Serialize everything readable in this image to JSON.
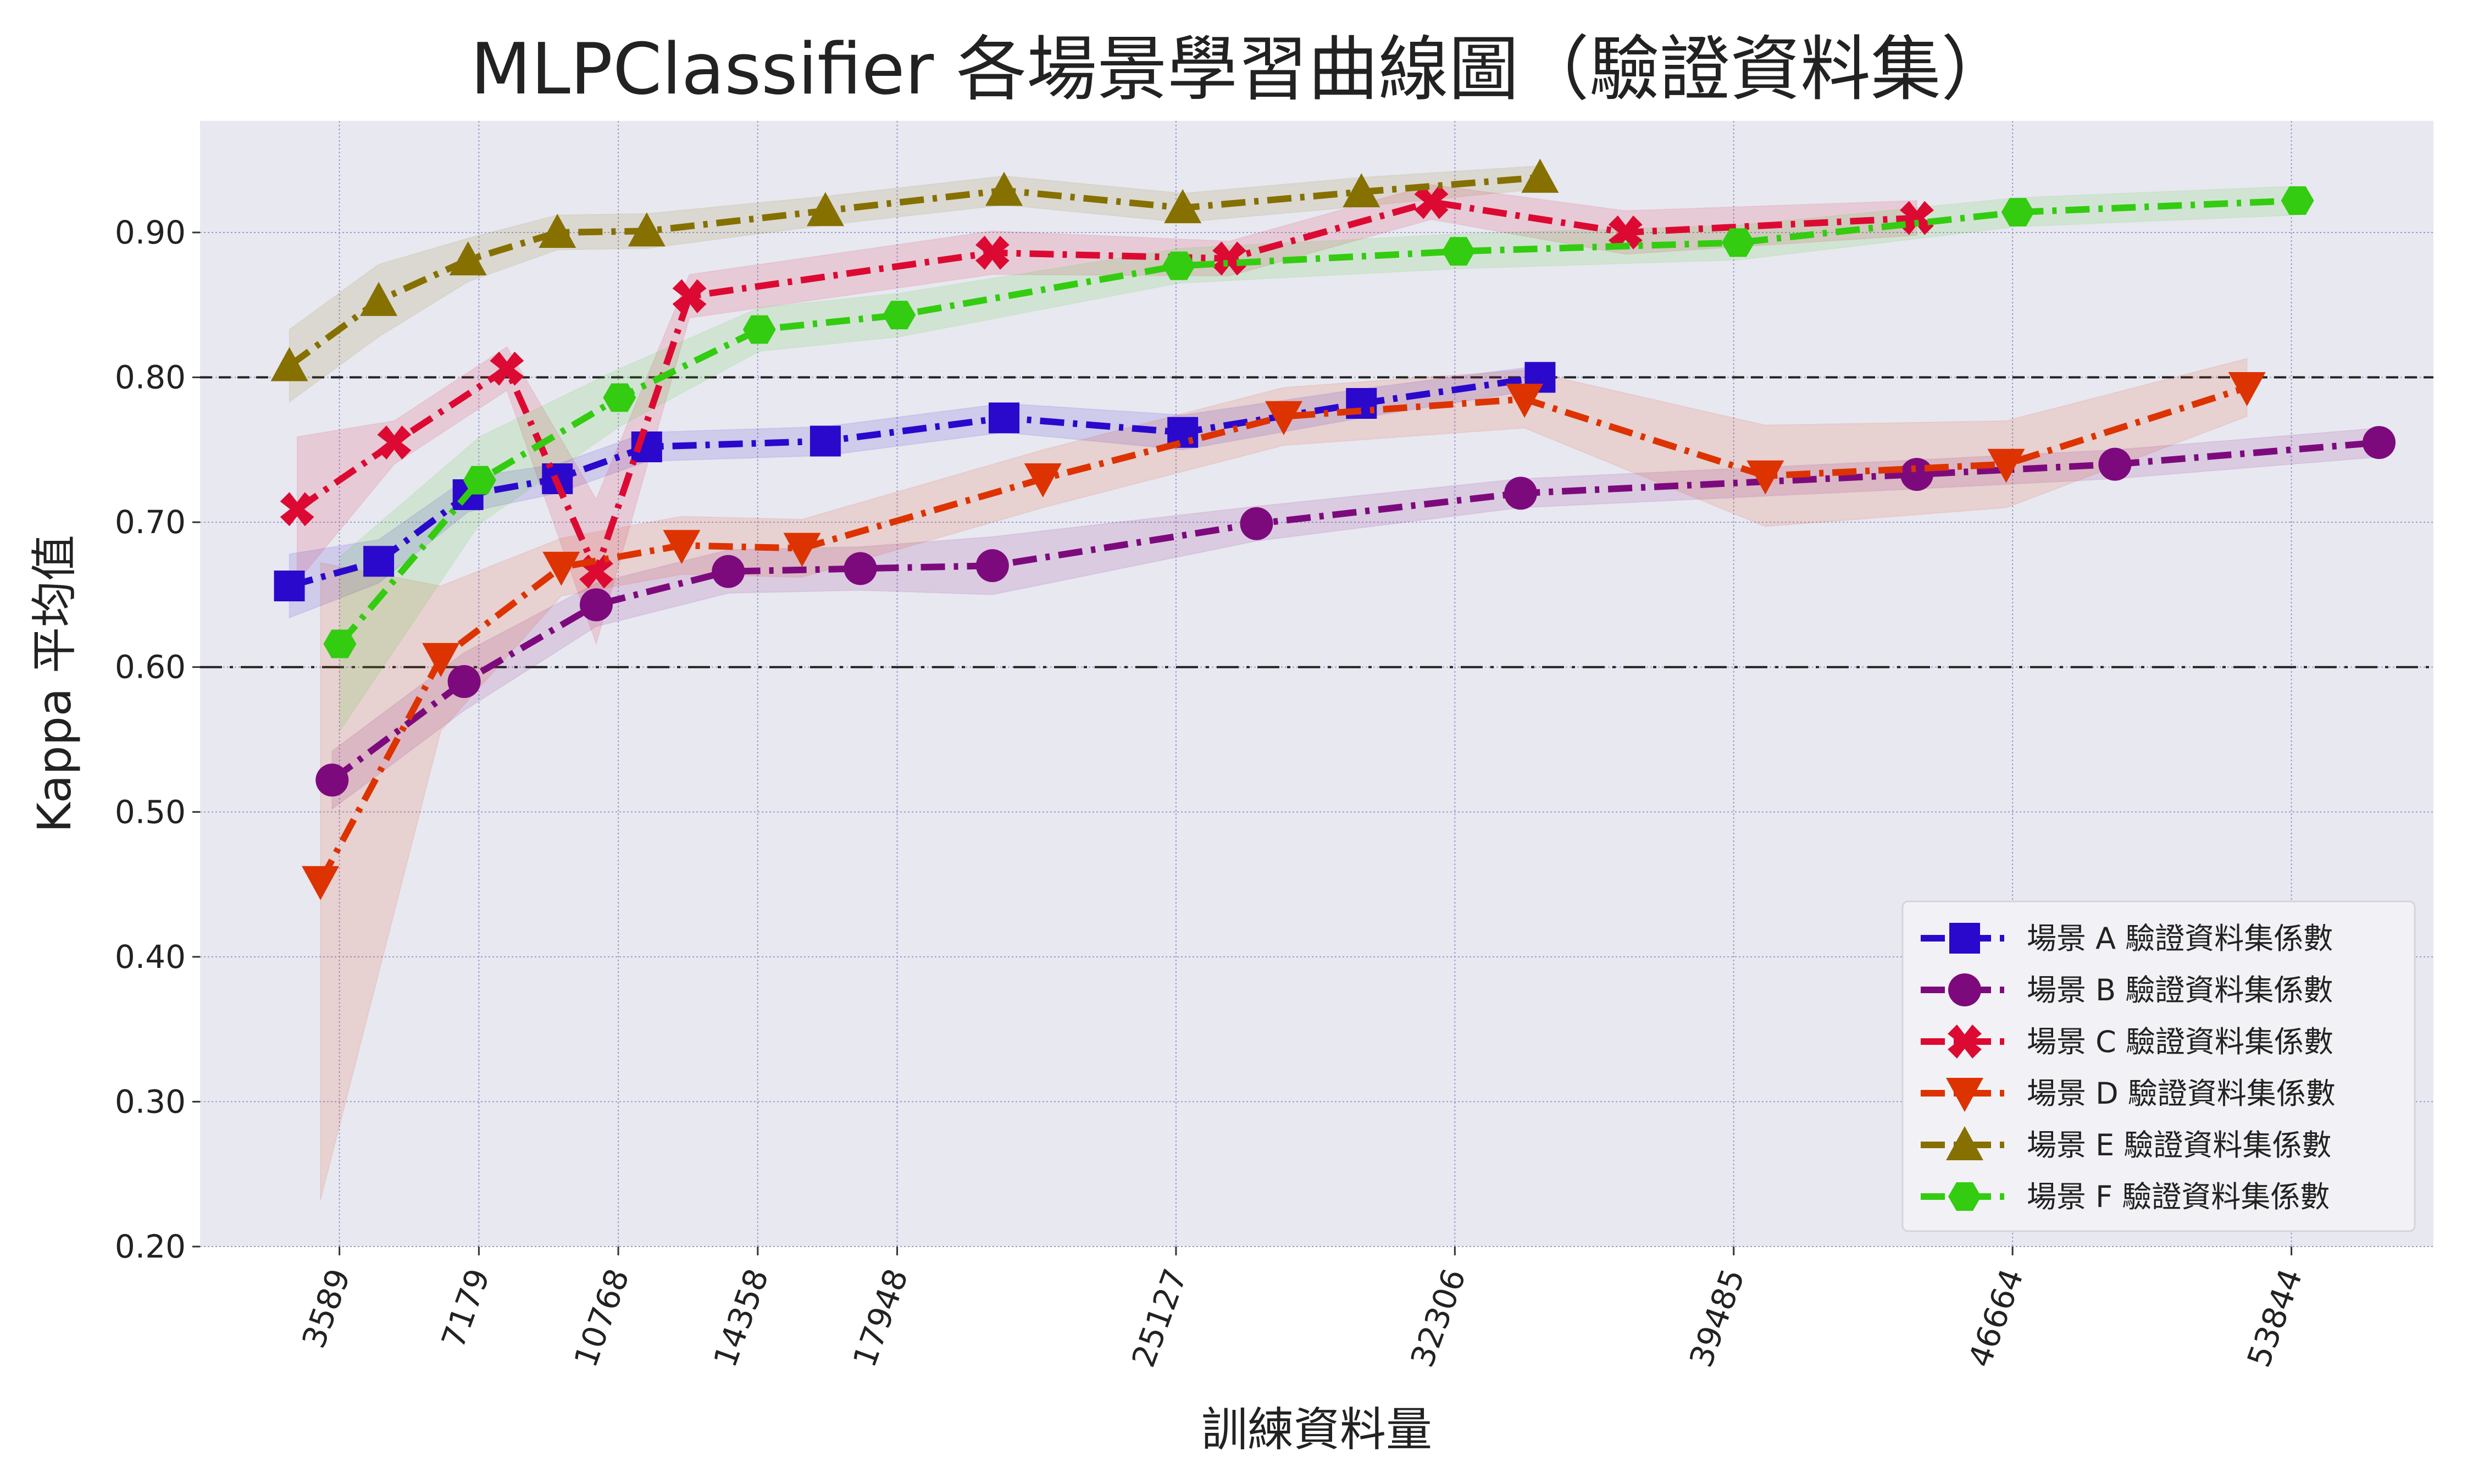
{
  "chart_data": {
    "type": "line",
    "title": "MLPClassifier 各場景學習曲線圖（驗證資料集）",
    "xlabel": "訓練資料量",
    "ylabel": "Kappa 平均值",
    "xlim": [
      0,
      57500
    ],
    "ylim": [
      0.2,
      0.977
    ],
    "x_ticks": [
      3589,
      7179,
      10768,
      14358,
      17948,
      25127,
      32306,
      39485,
      46664,
      53844
    ],
    "y_ticks": [
      0.2,
      0.3,
      0.4,
      0.5,
      0.6,
      0.7,
      0.8,
      0.9
    ],
    "y_tick_labels": [
      "0.20",
      "0.30",
      "0.40",
      "0.50",
      "0.60",
      "0.70",
      "0.80",
      "0.90"
    ],
    "reference_lines": [
      {
        "y": 0.8,
        "style": "dashed"
      },
      {
        "y": 0.6,
        "style": "dashdot"
      }
    ],
    "grid": true,
    "legend_position": "lower-right",
    "series": [
      {
        "name": "場景 A 驗證資料集係數",
        "color": "#2a08cc",
        "marker": "square",
        "x": [
          2300,
          4600,
          6900,
          9200,
          11500,
          16100,
          20700,
          25300,
          29900,
          34500
        ],
        "y": [
          0.656,
          0.673,
          0.719,
          0.73,
          0.752,
          0.756,
          0.772,
          0.762,
          0.782,
          0.8
        ],
        "band": [
          0.022,
          0.015,
          0.012,
          0.01,
          0.01,
          0.01,
          0.01,
          0.012,
          0.01,
          0.008
        ]
      },
      {
        "name": "場景 B 驗證資料集係數",
        "color": "#7d0a7d",
        "marker": "circle",
        "x": [
          3400,
          6800,
          10200,
          13600,
          17000,
          20400,
          27200,
          34000,
          44200,
          49300,
          56100
        ],
        "y": [
          0.522,
          0.59,
          0.643,
          0.666,
          0.668,
          0.67,
          0.699,
          0.72,
          0.733,
          0.74,
          0.755
        ],
        "band": [
          0.02,
          0.02,
          0.015,
          0.015,
          0.015,
          0.02,
          0.012,
          0.01,
          0.01,
          0.01,
          0.01
        ]
      },
      {
        "name": "場景 C 驗證資料集係數",
        "color": "#dc0a32",
        "marker": "x",
        "x": [
          2500,
          5000,
          7900,
          10200,
          12600,
          20400,
          26500,
          31700,
          36700,
          44200
        ],
        "y": [
          0.709,
          0.755,
          0.806,
          0.666,
          0.856,
          0.886,
          0.882,
          0.921,
          0.9,
          0.91
        ],
        "band": [
          0.05,
          0.015,
          0.015,
          0.05,
          0.015,
          0.015,
          0.012,
          0.012,
          0.015,
          0.012
        ]
      },
      {
        "name": "場景 D 驗證資料集係數",
        "color": "#dd3300",
        "marker": "triangle-down",
        "x": [
          3100,
          6200,
          9300,
          12400,
          15500,
          21700,
          27900,
          34100,
          40300,
          46500,
          52700
        ],
        "y": [
          0.452,
          0.606,
          0.669,
          0.684,
          0.682,
          0.73,
          0.773,
          0.785,
          0.732,
          0.74,
          0.793
        ],
        "band": [
          0.22,
          0.05,
          0.02,
          0.02,
          0.02,
          0.02,
          0.02,
          0.02,
          0.035,
          0.03,
          0.02
        ]
      },
      {
        "name": "場景 E 驗證資料集係數",
        "color": "#857000",
        "marker": "triangle-up",
        "x": [
          2300,
          4600,
          6900,
          9200,
          11500,
          16100,
          20700,
          25300,
          29900,
          34500
        ],
        "y": [
          0.808,
          0.853,
          0.881,
          0.9,
          0.901,
          0.915,
          0.929,
          0.917,
          0.928,
          0.938
        ],
        "band": [
          0.025,
          0.025,
          0.015,
          0.012,
          0.012,
          0.01,
          0.01,
          0.01,
          0.01,
          0.008
        ]
      },
      {
        "name": "場景 F 驗證資料集係數",
        "color": "#33cc10",
        "marker": "hexagon",
        "x": [
          3600,
          7200,
          10800,
          14400,
          18000,
          25200,
          32400,
          39600,
          46800,
          54000
        ],
        "y": [
          0.616,
          0.729,
          0.786,
          0.833,
          0.843,
          0.877,
          0.887,
          0.893,
          0.914,
          0.922
        ],
        "band": [
          0.06,
          0.03,
          0.02,
          0.015,
          0.015,
          0.012,
          0.012,
          0.012,
          0.01,
          0.01
        ]
      }
    ]
  }
}
